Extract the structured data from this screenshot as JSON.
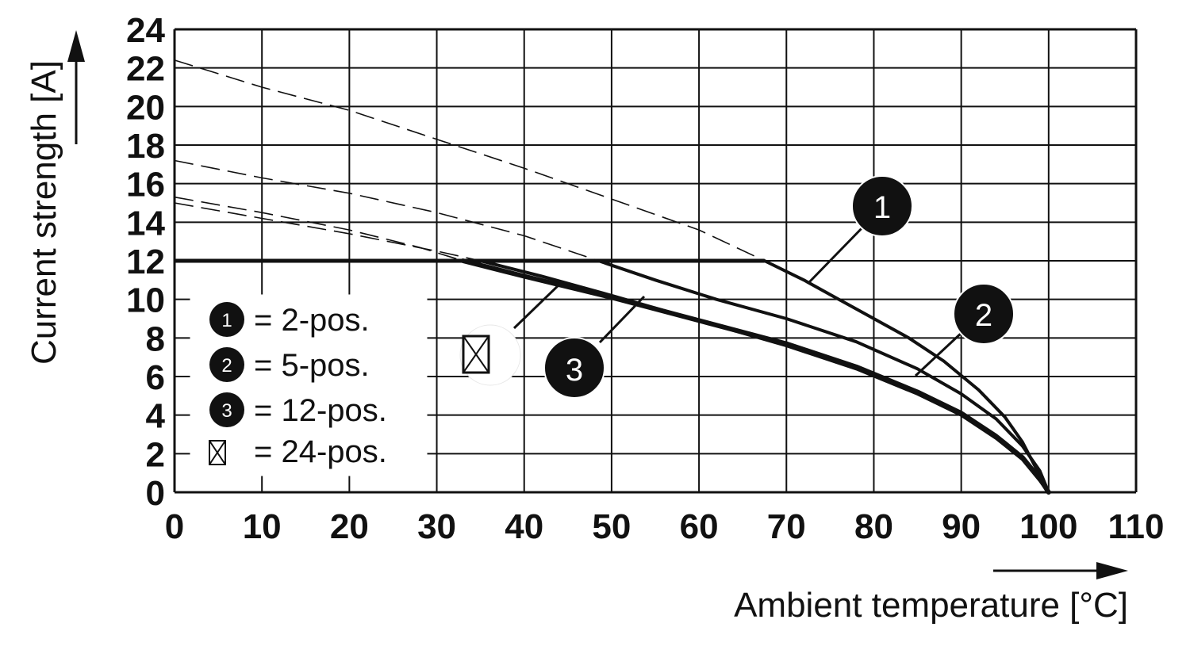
{
  "chart_data": {
    "type": "line",
    "title": "",
    "xlabel": "Ambient temperature [°C]",
    "ylabel": "Current strength [A]",
    "xlim": [
      0,
      110
    ],
    "ylim": [
      0,
      24
    ],
    "x_ticks": [
      0,
      10,
      20,
      30,
      40,
      50,
      60,
      70,
      80,
      90,
      100,
      110
    ],
    "y_ticks": [
      0,
      2,
      4,
      6,
      8,
      10,
      12,
      14,
      16,
      18,
      20,
      22,
      24
    ],
    "grid": true,
    "current_limit": 12,
    "series": [
      {
        "name": "2-pos.",
        "badge": "1",
        "stroke_width": 4,
        "points": [
          [
            67.5,
            12
          ],
          [
            72,
            11
          ],
          [
            76,
            10
          ],
          [
            80,
            9
          ],
          [
            84,
            8
          ],
          [
            88,
            6.8
          ],
          [
            92,
            5.3
          ],
          [
            95,
            3.9
          ],
          [
            97,
            2.6
          ],
          [
            98.5,
            1.3
          ],
          [
            100,
            0
          ]
        ],
        "dashed_extension": [
          [
            0,
            22.4
          ],
          [
            10,
            21
          ],
          [
            20,
            19.8
          ],
          [
            30,
            18.3
          ],
          [
            40,
            16.8
          ],
          [
            50,
            15.2
          ],
          [
            60,
            13.6
          ],
          [
            67.5,
            12
          ]
        ]
      },
      {
        "name": "5-pos.",
        "badge": "2",
        "stroke_width": 4,
        "points": [
          [
            48.5,
            12
          ],
          [
            55,
            11
          ],
          [
            62,
            10
          ],
          [
            70,
            9
          ],
          [
            78,
            7.8
          ],
          [
            85,
            6.4
          ],
          [
            90,
            5.1
          ],
          [
            94,
            3.8
          ],
          [
            97,
            2.4
          ],
          [
            99,
            1.1
          ],
          [
            100,
            0
          ]
        ],
        "dashed_extension": [
          [
            0,
            17.2
          ],
          [
            10,
            16.3
          ],
          [
            20,
            15.5
          ],
          [
            30,
            14.5
          ],
          [
            40,
            13.3
          ],
          [
            48.5,
            12
          ]
        ]
      },
      {
        "name": "12-pos.",
        "badge": "3",
        "stroke_width": 6,
        "points": [
          [
            33,
            12
          ],
          [
            40,
            11.2
          ],
          [
            50,
            10.1
          ],
          [
            60,
            8.9
          ],
          [
            70,
            7.7
          ],
          [
            78,
            6.5
          ],
          [
            85,
            5.2
          ],
          [
            90,
            4.1
          ],
          [
            94,
            2.9
          ],
          [
            97,
            1.8
          ],
          [
            99,
            0.7
          ],
          [
            100,
            0
          ]
        ],
        "dashed_extension": [
          [
            0,
            15.3
          ],
          [
            10,
            14.5
          ],
          [
            20,
            13.6
          ],
          [
            28,
            12.7
          ],
          [
            33,
            12
          ]
        ]
      },
      {
        "name": "24-pos.",
        "badge": "⊠",
        "stroke_width": 4,
        "points": [
          [
            35,
            12
          ],
          [
            42,
            11.2
          ],
          [
            50,
            10.2
          ],
          [
            60,
            8.9
          ],
          [
            70,
            7.6
          ],
          [
            78,
            6.4
          ],
          [
            85,
            5.1
          ],
          [
            90,
            4
          ],
          [
            94,
            2.8
          ],
          [
            97,
            1.7
          ],
          [
            99,
            0.6
          ],
          [
            100,
            0
          ]
        ],
        "dashed_extension": [
          [
            0,
            15
          ],
          [
            10,
            14.2
          ],
          [
            20,
            13.4
          ],
          [
            30,
            12.5
          ],
          [
            35,
            12
          ]
        ]
      }
    ],
    "legend": [
      {
        "badge": "1",
        "label": "= 2-pos."
      },
      {
        "badge": "2",
        "label": "= 5-pos."
      },
      {
        "badge": "3",
        "label": "= 12-pos."
      },
      {
        "badge": "⊠",
        "label": "= 24-pos."
      }
    ],
    "legend_placement": "bottom-left",
    "colors": {
      "line": "#111111",
      "grid": "#111111",
      "badge_fill": "#111111",
      "badge_text": "#ffffff"
    }
  }
}
